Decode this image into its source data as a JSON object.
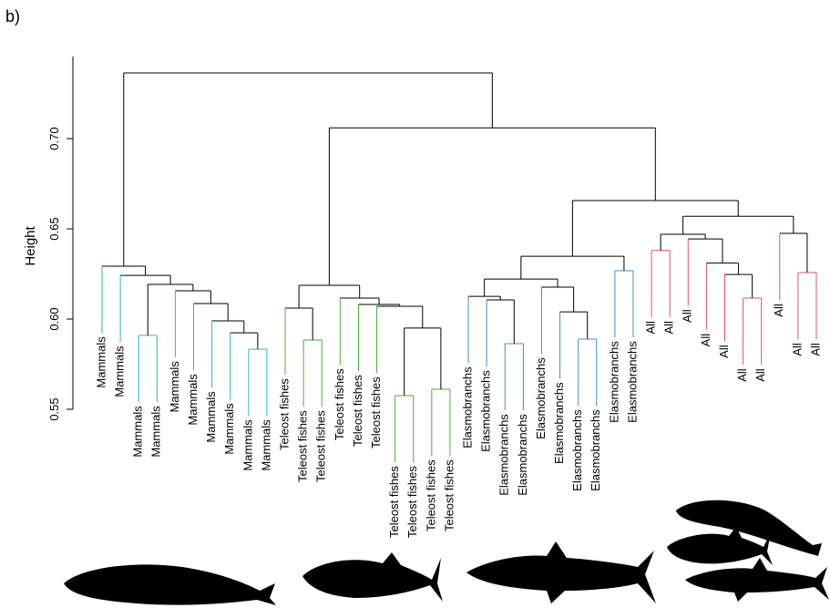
{
  "chart_data": {
    "type": "dendrogram",
    "panel_label": "b)",
    "ylabel": "Height",
    "ylim": [
      0.55,
      0.7455
    ],
    "yticks": [
      0.55,
      {
        "value": 0.6,
        "label": "0.60"
      },
      0.65,
      {
        "value": 0.7,
        "label": "0.70"
      }
    ],
    "labels": [
      "Mammals",
      "Mammals",
      "Mammals",
      "Mammals",
      "Mammals",
      "Mammals",
      "Mammals",
      "Mammals",
      "Mammals",
      "Mammals",
      "Teleost fishes",
      "Teleost fishes",
      "Teleost fishes",
      "Teleost fishes",
      "Teleost fishes",
      "Teleost fishes",
      "Teleost fishes",
      "Teleost fishes",
      "Teleost fishes",
      "Teleost fishes",
      "Elasmobranchs",
      "Elasmobranchs",
      "Elasmobranchs",
      "Elasmobranchs",
      "Elasmobranchs",
      "Elasmobranchs",
      "Elasmobranchs",
      "Elasmobranchs",
      "Elasmobranchs",
      "Elasmobranchs",
      "All",
      "All",
      "All",
      "All",
      "All",
      "All",
      "All",
      "All",
      "All",
      "All"
    ],
    "colors": {
      "Mammals": "#2bb5c9",
      "Teleost fishes": "#4cae3a",
      "Elasmobranchs": "#3a8fd2",
      "All": "#e2536b"
    },
    "merge": [
      [
        -9,
        -10
      ],
      [
        -8,
        1
      ],
      [
        -7,
        2
      ],
      [
        -6,
        3
      ],
      [
        -5,
        4
      ],
      [
        -3,
        -4
      ],
      [
        6,
        5
      ],
      [
        -2,
        7
      ],
      [
        -1,
        8
      ],
      [
        -12,
        -13
      ],
      [
        -11,
        10
      ],
      [
        -17,
        -18
      ],
      [
        -19,
        -20
      ],
      [
        12,
        13
      ],
      [
        -16,
        14
      ],
      [
        -15,
        15
      ],
      [
        -14,
        16
      ],
      [
        11,
        17
      ],
      [
        -23,
        -24
      ],
      [
        -22,
        19
      ],
      [
        -21,
        20
      ],
      [
        -27,
        -28
      ],
      [
        -26,
        22
      ],
      [
        -25,
        23
      ],
      [
        21,
        24
      ],
      [
        -29,
        -30
      ],
      [
        25,
        26
      ],
      [
        -31,
        -32
      ],
      [
        -36,
        -37
      ],
      [
        -35,
        29
      ],
      [
        -34,
        30
      ],
      [
        -33,
        31
      ],
      [
        28,
        32
      ],
      [
        -39,
        -40
      ],
      [
        -38,
        34
      ],
      [
        33,
        35
      ],
      [
        27,
        36
      ],
      [
        18,
        37
      ],
      [
        9,
        38
      ]
    ],
    "height": [
      0.5833,
      0.5924,
      0.599,
      0.6086,
      0.6157,
      0.5909,
      0.6192,
      0.6242,
      0.6293,
      0.5884,
      0.6061,
      0.5576,
      0.5611,
      0.595,
      0.6071,
      0.6081,
      0.6116,
      0.6187,
      0.5864,
      0.6106,
      0.6126,
      0.5889,
      0.604,
      0.6177,
      0.6222,
      0.6268,
      0.6348,
      0.638,
      0.6116,
      0.6247,
      0.631,
      0.6444,
      0.647,
      0.6258,
      0.6475,
      0.657,
      0.6657,
      0.706,
      0.7364
    ]
  }
}
